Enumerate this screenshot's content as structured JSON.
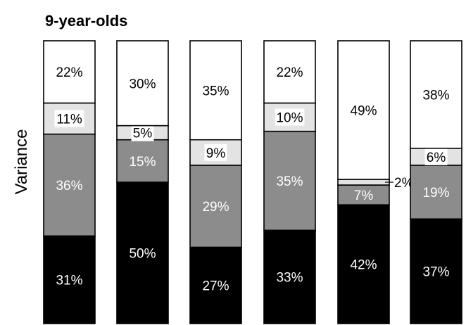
{
  "chart_data": {
    "type": "bar",
    "stacked": true,
    "title": "9-year-olds",
    "ylabel": "Variance",
    "xlabel": "",
    "ylim": [
      0,
      100
    ],
    "categories": [
      "",
      "",
      "",
      "",
      "",
      ""
    ],
    "series": [
      {
        "values": [
          31,
          50,
          27,
          33,
          42,
          37
        ],
        "color": "#000000",
        "label_color": "#ffffff"
      },
      {
        "values": [
          36,
          15,
          29,
          35,
          7,
          19
        ],
        "color": "#8c8c8c",
        "label_color": "#ffffff"
      },
      {
        "values": [
          11,
          5,
          9,
          10,
          2,
          6
        ],
        "color": "#e3e3e3",
        "label_color": "#000000"
      },
      {
        "values": [
          22,
          30,
          35,
          22,
          49,
          38
        ],
        "color": "#ffffff",
        "label_color": "#000000"
      }
    ],
    "labels": [
      [
        "31%",
        "50%",
        "27%",
        "33%",
        "42%",
        "37%"
      ],
      [
        "36%",
        "15%",
        "29%",
        "35%",
        "7%",
        "19%"
      ],
      [
        "11%",
        "5%",
        "9%",
        "10%",
        "2%",
        "6%"
      ],
      [
        "22%",
        "30%",
        "35%",
        "22%",
        "49%",
        "38%"
      ]
    ],
    "grid": false,
    "legend": "none"
  }
}
